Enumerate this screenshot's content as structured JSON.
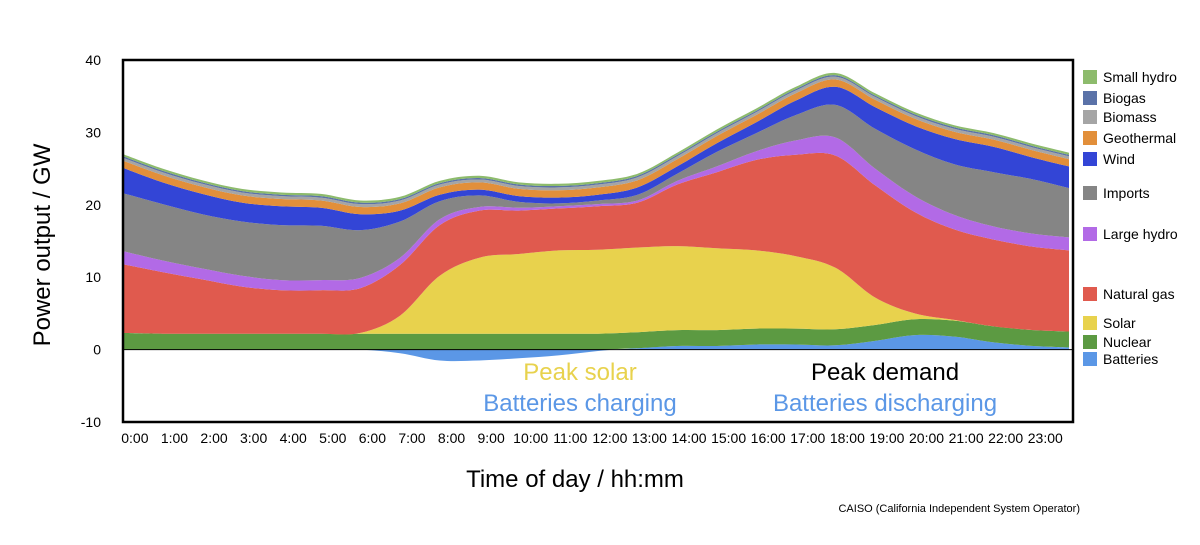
{
  "chart_data": {
    "type": "area",
    "stacked": true,
    "ylabel": "Power output / GW",
    "xlabel": "Time of day / hh:mm",
    "ylim": [
      -10,
      40
    ],
    "xlim": [
      0,
      24
    ],
    "grid": false,
    "legend_position": "right",
    "y_ticks": [
      "-10",
      "0",
      "10",
      "20",
      "30",
      "40"
    ],
    "x_ticks": [
      "0:00",
      "1:00",
      "2:00",
      "3:00",
      "4:00",
      "5:00",
      "6:00",
      "7:00",
      "8:00",
      "9:00",
      "10:00",
      "11:00",
      "12:00",
      "13:00",
      "14:00",
      "15:00",
      "16:00",
      "17:00",
      "18:00",
      "19:00",
      "20:00",
      "21:00",
      "22:00",
      "23:00"
    ],
    "x_hours": [
      0,
      1,
      2,
      3,
      4,
      5,
      6,
      7,
      8,
      9,
      10,
      11,
      12,
      13,
      14,
      15,
      16,
      17,
      18,
      19,
      20,
      21,
      22,
      23,
      23.9
    ],
    "series": [
      {
        "name": "Batteries",
        "color": "#5b97e6",
        "values": [
          0,
          0,
          0,
          0,
          0,
          0,
          0,
          -0.5,
          -1.5,
          -1.5,
          -1.2,
          -0.8,
          -0.2,
          0.2,
          0.5,
          0.5,
          0.7,
          0.7,
          0.6,
          1.2,
          2.0,
          1.8,
          1.0,
          0.5,
          0.3
        ]
      },
      {
        "name": "Nuclear",
        "color": "#5c9a42",
        "values": [
          2.3,
          2.2,
          2.2,
          2.2,
          2.2,
          2.2,
          2.2,
          2.2,
          2.2,
          2.2,
          2.2,
          2.2,
          2.2,
          2.2,
          2.2,
          2.2,
          2.2,
          2.2,
          2.2,
          2.2,
          2.2,
          2.2,
          2.2,
          2.2,
          2.2
        ]
      },
      {
        "name": "Solar",
        "color": "#e8d24d",
        "values": [
          0,
          0,
          0,
          0,
          0,
          0,
          0.1,
          2.5,
          8.0,
          10.5,
          11.0,
          11.5,
          11.6,
          11.7,
          11.6,
          11.3,
          10.8,
          10.0,
          8.5,
          3.8,
          0.8,
          0.1,
          0,
          0,
          0
        ]
      },
      {
        "name": "Natural gas",
        "color": "#e05a4e",
        "values": [
          9.5,
          8.5,
          7.5,
          6.5,
          6.0,
          6.0,
          6.2,
          7.0,
          7.0,
          6.5,
          6.0,
          5.8,
          6.0,
          6.2,
          8.5,
          10.5,
          12.5,
          14.0,
          15.5,
          15.5,
          14.0,
          12.5,
          12.0,
          11.5,
          11.2
        ]
      },
      {
        "name": "Large hydro",
        "color": "#b26ae6",
        "values": [
          1.8,
          1.6,
          1.5,
          1.5,
          1.4,
          1.4,
          1.4,
          1.0,
          0.8,
          0.5,
          0.4,
          0.3,
          0.3,
          0.3,
          0.5,
          0.8,
          1.2,
          2.0,
          2.5,
          2.3,
          2.2,
          2.0,
          1.8,
          1.8,
          1.8
        ]
      },
      {
        "name": "Imports",
        "color": "#858585",
        "values": [
          8.0,
          7.8,
          7.5,
          7.5,
          7.6,
          7.5,
          6.6,
          5.0,
          2.5,
          1.6,
          0.8,
          0.4,
          0.5,
          0.8,
          1.0,
          2.0,
          2.5,
          3.5,
          4.5,
          5.5,
          6.5,
          7.0,
          7.5,
          7.5,
          6.8
        ]
      },
      {
        "name": "Wind",
        "color": "#3345d6",
        "values": [
          3.5,
          3.0,
          2.8,
          2.6,
          2.6,
          2.5,
          2.2,
          1.5,
          0.9,
          0.8,
          0.8,
          0.8,
          0.8,
          1.0,
          1.0,
          1.2,
          1.5,
          2.0,
          2.5,
          3.0,
          3.2,
          3.5,
          3.5,
          3.0,
          3.0
        ]
      },
      {
        "name": "Geothermal",
        "color": "#e28f3a",
        "values": [
          1.0,
          1.0,
          1.0,
          1.0,
          1.0,
          1.0,
          1.0,
          1.0,
          1.0,
          1.0,
          1.0,
          1.0,
          1.0,
          1.0,
          1.0,
          1.0,
          1.0,
          1.0,
          1.0,
          1.0,
          1.0,
          1.0,
          1.0,
          1.0,
          1.0
        ]
      },
      {
        "name": "Biomass",
        "color": "#a5a5a5",
        "values": [
          0.4,
          0.4,
          0.4,
          0.4,
          0.4,
          0.4,
          0.4,
          0.4,
          0.4,
          0.4,
          0.4,
          0.4,
          0.4,
          0.4,
          0.4,
          0.4,
          0.4,
          0.4,
          0.4,
          0.4,
          0.4,
          0.4,
          0.4,
          0.4,
          0.4
        ]
      },
      {
        "name": "Biogas",
        "color": "#5a72a8",
        "values": [
          0.2,
          0.2,
          0.2,
          0.2,
          0.2,
          0.2,
          0.2,
          0.2,
          0.2,
          0.2,
          0.2,
          0.2,
          0.2,
          0.2,
          0.2,
          0.2,
          0.2,
          0.2,
          0.2,
          0.2,
          0.2,
          0.2,
          0.2,
          0.2,
          0.2
        ]
      },
      {
        "name": "Small hydro",
        "color": "#8dbb6c",
        "values": [
          0.3,
          0.3,
          0.3,
          0.3,
          0.3,
          0.3,
          0.3,
          0.3,
          0.3,
          0.3,
          0.3,
          0.3,
          0.3,
          0.3,
          0.3,
          0.3,
          0.3,
          0.3,
          0.3,
          0.3,
          0.3,
          0.3,
          0.3,
          0.3,
          0.3
        ]
      }
    ],
    "legend_order": [
      "Small hydro",
      "Biogas",
      "Biomass",
      "Geothermal",
      "Wind",
      "Imports",
      "Large hydro",
      "Natural gas",
      "Solar",
      "Nuclear",
      "Batteries"
    ],
    "annotations": [
      {
        "text": "Peak solar",
        "color": "#e8d24d"
      },
      {
        "text": "Batteries charging",
        "color": "#5b97e6"
      },
      {
        "text": "Peak demand",
        "color": "#000000"
      },
      {
        "text": "Batteries discharging",
        "color": "#5b97e6"
      }
    ],
    "source_note": "CAISO (California Independent System Operator)"
  }
}
